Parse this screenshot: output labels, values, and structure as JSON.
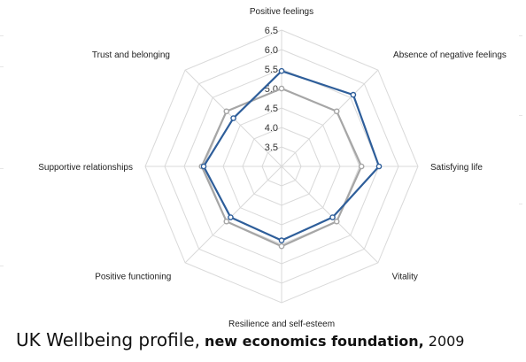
{
  "chart_data": {
    "type": "radar",
    "categories": [
      "Positive feelings",
      "Absence of negative feelings",
      "Satisfying life",
      "Vitality",
      "Resilience and self-esteem",
      "Positive functioning",
      "Supportive relationships",
      "Trust and belonging"
    ],
    "r_ticks": [
      "3.5",
      "4.0",
      "4.5",
      "5.0",
      "5.5",
      "6.0",
      "6.5"
    ],
    "r_range": [
      3.0,
      6.5
    ],
    "grid": true,
    "series": [
      {
        "color": "#a6a6a6",
        "values": [
          5.0,
          5.0,
          5.05,
          5.0,
          5.05,
          5.0,
          5.05,
          5.0
        ]
      },
      {
        "color": "#2e5e9a",
        "values": [
          5.45,
          5.6,
          5.5,
          4.85,
          4.9,
          4.85,
          5.0,
          4.75
        ]
      }
    ]
  },
  "caption": {
    "title": "UK Wellbeing profile,",
    "org": "new economics foundation,",
    "year": "2009"
  }
}
